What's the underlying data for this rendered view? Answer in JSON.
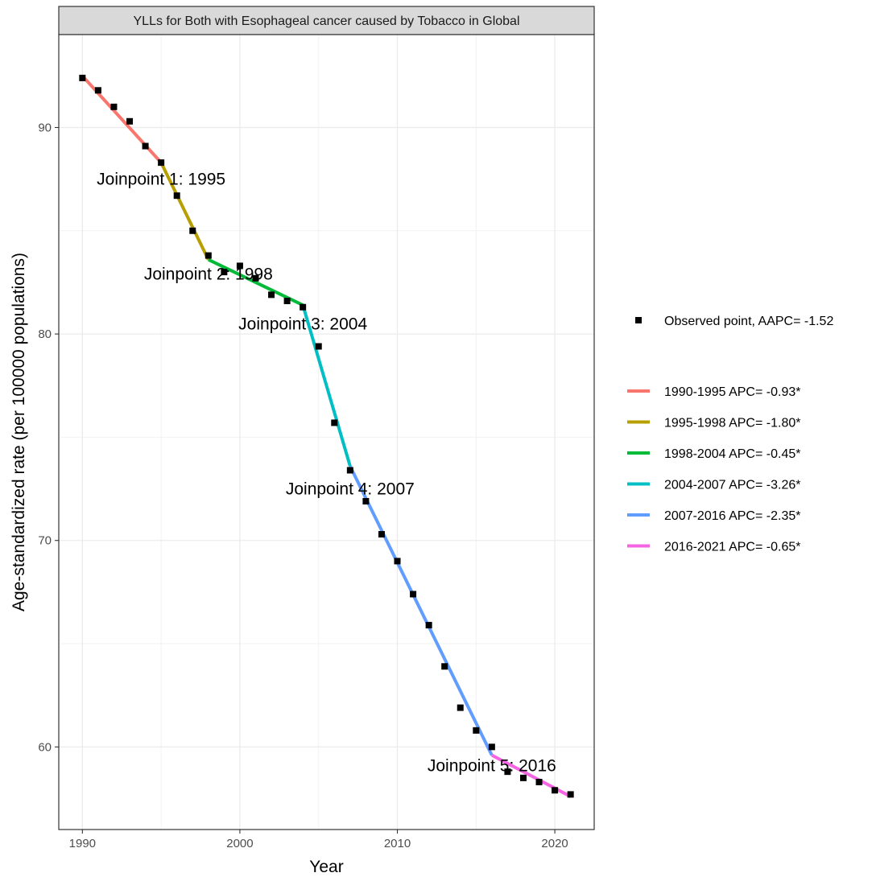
{
  "chart_data": {
    "type": "line",
    "title": "YLLs for Both with Esophageal cancer caused by Tobacco in Global",
    "xlabel": "Year",
    "ylabel": "Age-standardized rate (per 100000 populations)",
    "xlim": [
      1988.5,
      2022.5
    ],
    "ylim": [
      56,
      94.5
    ],
    "x_ticks": [
      1990,
      2000,
      2010,
      2020
    ],
    "y_ticks": [
      60,
      70,
      80,
      90
    ],
    "grid": true,
    "legend_position": "right",
    "observed": {
      "name": "Observed point, AAPC= -1.52",
      "x": [
        1990,
        1991,
        1992,
        1993,
        1994,
        1995,
        1996,
        1997,
        1998,
        1999,
        2000,
        2001,
        2002,
        2003,
        2004,
        2005,
        2006,
        2007,
        2008,
        2009,
        2010,
        2011,
        2012,
        2013,
        2014,
        2015,
        2016,
        2017,
        2018,
        2019,
        2020,
        2021
      ],
      "y": [
        92.4,
        91.8,
        91.0,
        90.3,
        89.1,
        88.3,
        86.7,
        85.0,
        83.8,
        83.0,
        83.3,
        82.7,
        81.9,
        81.6,
        81.3,
        79.4,
        75.7,
        73.4,
        71.9,
        70.3,
        69.0,
        67.4,
        65.9,
        63.9,
        61.9,
        60.8,
        60.0,
        58.8,
        58.5,
        58.3,
        57.9,
        57.7
      ],
      "color": "#000000"
    },
    "series": [
      {
        "name": "1990-1995 APC= -0.93*",
        "color": "#F8766D",
        "x": [
          1990,
          1995
        ],
        "y": [
          92.5,
          88.3
        ]
      },
      {
        "name": "1995-1998 APC= -1.80*",
        "color": "#B79F00",
        "x": [
          1995,
          1998
        ],
        "y": [
          88.3,
          83.6
        ]
      },
      {
        "name": "1998-2004 APC= -0.45*",
        "color": "#00BA38",
        "x": [
          1998,
          2004
        ],
        "y": [
          83.6,
          81.4
        ]
      },
      {
        "name": "2004-2007 APC= -3.26*",
        "color": "#00BFC4",
        "x": [
          2004,
          2007
        ],
        "y": [
          81.4,
          73.6
        ]
      },
      {
        "name": "2007-2016 APC= -2.35*",
        "color": "#619CFF",
        "x": [
          2007,
          2016
        ],
        "y": [
          73.6,
          59.6
        ]
      },
      {
        "name": "2016-2021 APC= -0.65*",
        "color": "#F564E3",
        "x": [
          2016,
          2021
        ],
        "y": [
          59.6,
          57.6
        ]
      }
    ],
    "annotations": [
      {
        "text": "Joinpoint 1: 1995",
        "x": 1995,
        "y": 87.5
      },
      {
        "text": "Joinpoint 2: 1998",
        "x": 1998,
        "y": 82.9
      },
      {
        "text": "Joinpoint 3: 2004",
        "x": 2004,
        "y": 80.5
      },
      {
        "text": "Joinpoint 4: 2007",
        "x": 2007,
        "y": 72.5
      },
      {
        "text": "Joinpoint 5: 2016",
        "x": 2016,
        "y": 59.1
      }
    ]
  }
}
